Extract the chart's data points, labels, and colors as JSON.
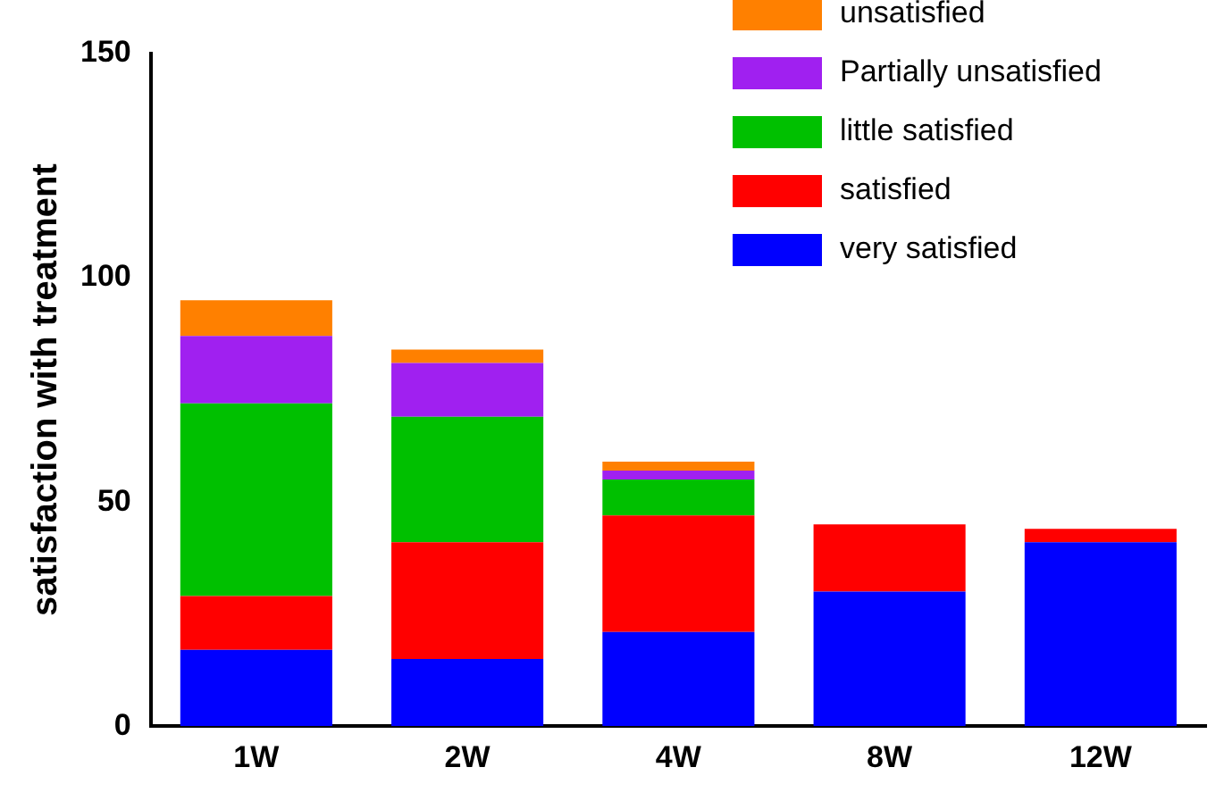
{
  "chart_data": {
    "type": "bar",
    "ylabel": "satisfaction with treatment",
    "categories": [
      "1W",
      "2W",
      "4W",
      "8W",
      "12W"
    ],
    "stacked": true,
    "ylim": [
      0,
      150
    ],
    "yticks": [
      0,
      50,
      100,
      150
    ],
    "grid": false,
    "legend": "top right",
    "series": [
      {
        "name": "very satisfied",
        "color": "#0000ff",
        "values": [
          17,
          15,
          21,
          30,
          41
        ]
      },
      {
        "name": "satisfied",
        "color": "#ff0000",
        "values": [
          12,
          26,
          26,
          15,
          3
        ]
      },
      {
        "name": "little satisfied",
        "color": "#00c000",
        "values": [
          43,
          28,
          8,
          null,
          null
        ]
      },
      {
        "name": "Partially unsatisfied",
        "color": "#a020f0",
        "values": [
          15,
          12,
          2,
          null,
          null
        ]
      },
      {
        "name": "unsatisfied",
        "color": "#ff8000",
        "values": [
          8,
          3,
          2,
          null,
          null
        ]
      }
    ]
  }
}
